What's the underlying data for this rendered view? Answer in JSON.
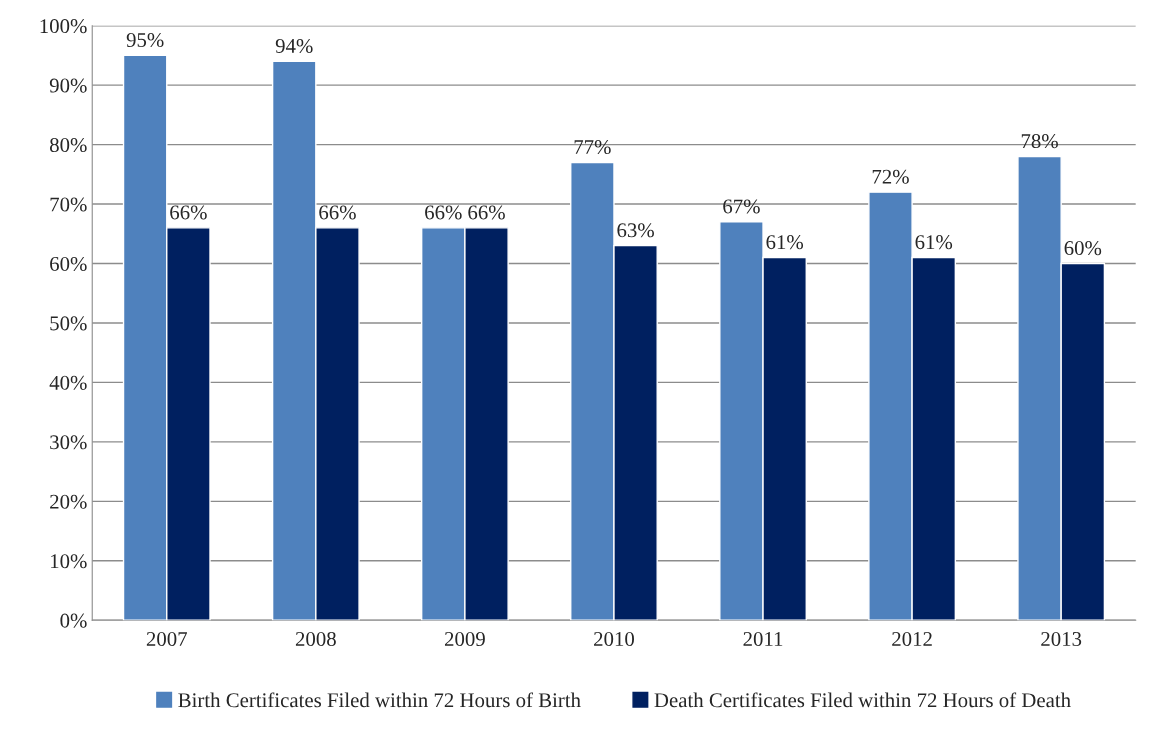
{
  "chart_data": {
    "type": "bar",
    "categories": [
      "2007",
      "2008",
      "2009",
      "2010",
      "2011",
      "2012",
      "2013"
    ],
    "series": [
      {
        "name": "Birth Certificates Filed within 72 Hours of Birth",
        "color": "#4f81bd",
        "values": [
          95,
          94,
          66,
          77,
          67,
          72,
          78
        ],
        "value_labels": [
          "95%",
          "94%",
          "66%",
          "77%",
          "67%",
          "72%",
          "78%"
        ]
      },
      {
        "name": "Death Certificates Filed within 72 Hours of Death",
        "color": "#002060",
        "values": [
          66,
          66,
          66,
          63,
          61,
          61,
          60
        ],
        "value_labels": [
          "66%",
          "66%",
          "66%",
          "63%",
          "61%",
          "61%",
          "60%"
        ]
      }
    ],
    "ylim": [
      0,
      100
    ],
    "yticks": [
      {
        "value": 0,
        "label": "0%"
      },
      {
        "value": 10,
        "label": "10%"
      },
      {
        "value": 20,
        "label": "20%"
      },
      {
        "value": 30,
        "label": "30%"
      },
      {
        "value": 40,
        "label": "40%"
      },
      {
        "value": 50,
        "label": "50%"
      },
      {
        "value": 60,
        "label": "60%"
      },
      {
        "value": 70,
        "label": "70%"
      },
      {
        "value": 80,
        "label": "80%"
      },
      {
        "value": 90,
        "label": "90%"
      },
      {
        "value": 100,
        "label": "100%"
      }
    ],
    "grid": "y",
    "legend": "bottom"
  }
}
